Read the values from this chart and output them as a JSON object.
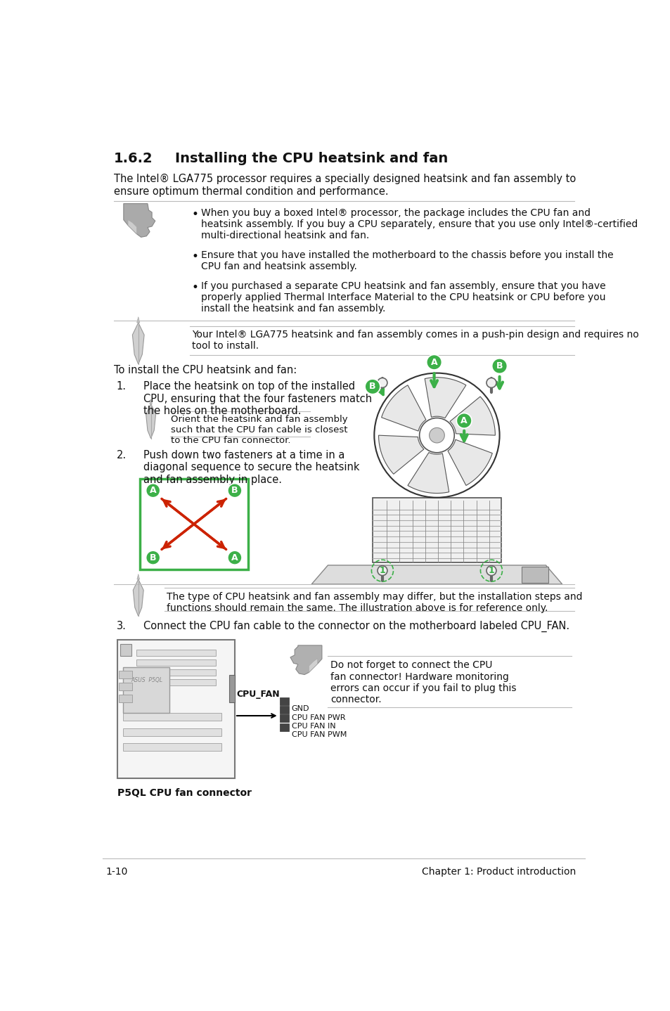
{
  "title_num": "1.6.2",
  "title_text": "Installing the CPU heatsink and fan",
  "subtitle": "The Intel® LGA775 processor requires a specially designed heatsink and fan assembly to\nensure optimum thermal condition and performance.",
  "bullets": [
    "When you buy a boxed Intel® processor, the package includes the CPU fan and\nheatsink assembly. If you buy a CPU separately, ensure that you use only Intel®-certified\nmulti-directional heatsink and fan.",
    "Ensure that you have installed the motherboard to the chassis before you install the\nCPU fan and heatsink assembly.",
    "If you purchased a separate CPU heatsink and fan assembly, ensure that you have\nproperly applied Thermal Interface Material to the CPU heatsink or CPU before you\ninstall the heatsink and fan assembly."
  ],
  "note2": "Your Intel® LGA775 heatsink and fan assembly comes in a push-pin design and requires no\ntool to install.",
  "intro": "To install the CPU heatsink and fan:",
  "step1_num": "1.",
  "step1": "Place the heatsink on top of the installed\nCPU, ensuring that the four fasteners match\nthe holes on the motherboard.",
  "step1_note": "Orient the heatsink and fan assembly\nsuch that the CPU fan cable is closest\nto the CPU fan connector.",
  "step2_num": "2.",
  "step2": "Push down two fasteners at a time in a\ndiagonal sequence to secure the heatsink\nand fan assembly in place.",
  "step2_note": "The type of CPU heatsink and fan assembly may differ, but the installation steps and\nfunctions should remain the same. The illustration above is for reference only.",
  "step3_num": "3.",
  "step3": "Connect the CPU fan cable to the connector on the motherboard labeled CPU_FAN.",
  "step3_note": "Do not forget to connect the CPU\nfan connector! Hardware monitoring\nerrors can occur if you fail to plug this\nconnector.",
  "cpu_fan_label": "CPU_FAN",
  "pins": [
    "GND",
    "CPU FAN PWR",
    "CPU FAN IN",
    "CPU FAN PWM"
  ],
  "board_label": "P5QL CPU fan connector",
  "footer_left": "1-10",
  "footer_right": "Chapter 1: Product introduction",
  "green": "#3cb048",
  "red": "#cc2200",
  "gray_line": "#bbbbbb",
  "text_dark": "#111111",
  "bg": "#ffffff"
}
